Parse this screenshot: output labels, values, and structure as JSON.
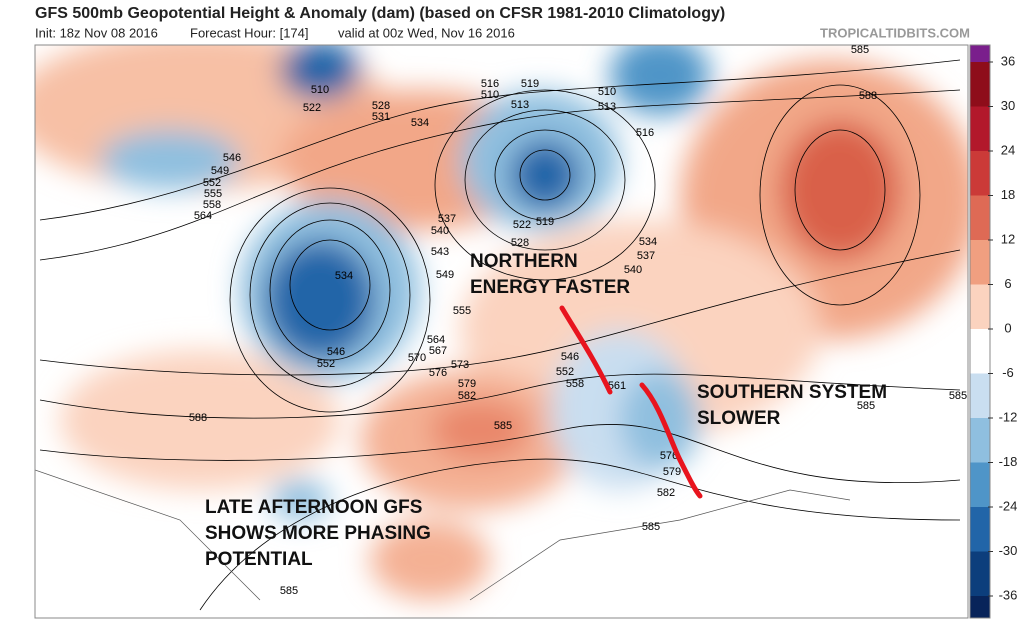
{
  "header": {
    "title": "GFS 500mb Geopotential Height & Anomaly (dam) (based on CFSR 1981-2010 Climatology)",
    "init": "Init: 18z Nov 08 2016",
    "forecast_hour": "Forecast Hour: [174]",
    "valid": "valid at 00z Wed, Nov 16 2016",
    "site": "TROPICALTIDBITS.COM"
  },
  "annotations": [
    {
      "lines": [
        "NORTHERN",
        "ENERGY FASTER"
      ]
    },
    {
      "lines": [
        "SOUTHERN SYSTEM",
        "SLOWER"
      ]
    },
    {
      "lines": [
        "LATE AFTERNOON GFS",
        "SHOWS MORE PHASING",
        "POTENTIAL"
      ]
    }
  ],
  "colorbar": {
    "ticks": [
      36,
      30,
      24,
      18,
      12,
      6,
      0,
      -6,
      -12,
      -18,
      -24,
      -30,
      -36
    ],
    "colors": [
      "#7a1f8c",
      "#8e0d1a",
      "#b2182b",
      "#cb3a38",
      "#de6a55",
      "#f09f80",
      "#fbd3bf",
      "#ffffff",
      "#c9def0",
      "#8fbfdf",
      "#4f95c8",
      "#2165a8",
      "#0c3e7c",
      "#08245a"
    ]
  },
  "contour_labels": [
    510,
    522,
    528,
    531,
    534,
    516,
    519,
    510,
    513,
    510,
    513,
    516,
    546,
    549,
    552,
    555,
    558,
    564,
    534,
    537,
    540,
    543,
    549,
    555,
    564,
    567,
    570,
    573,
    576,
    579,
    582,
    585,
    546,
    552,
    588,
    522,
    528,
    519,
    534,
    537,
    540,
    546,
    552,
    558,
    561,
    576,
    579,
    582,
    585,
    585,
    585,
    585,
    588,
    585
  ]
}
